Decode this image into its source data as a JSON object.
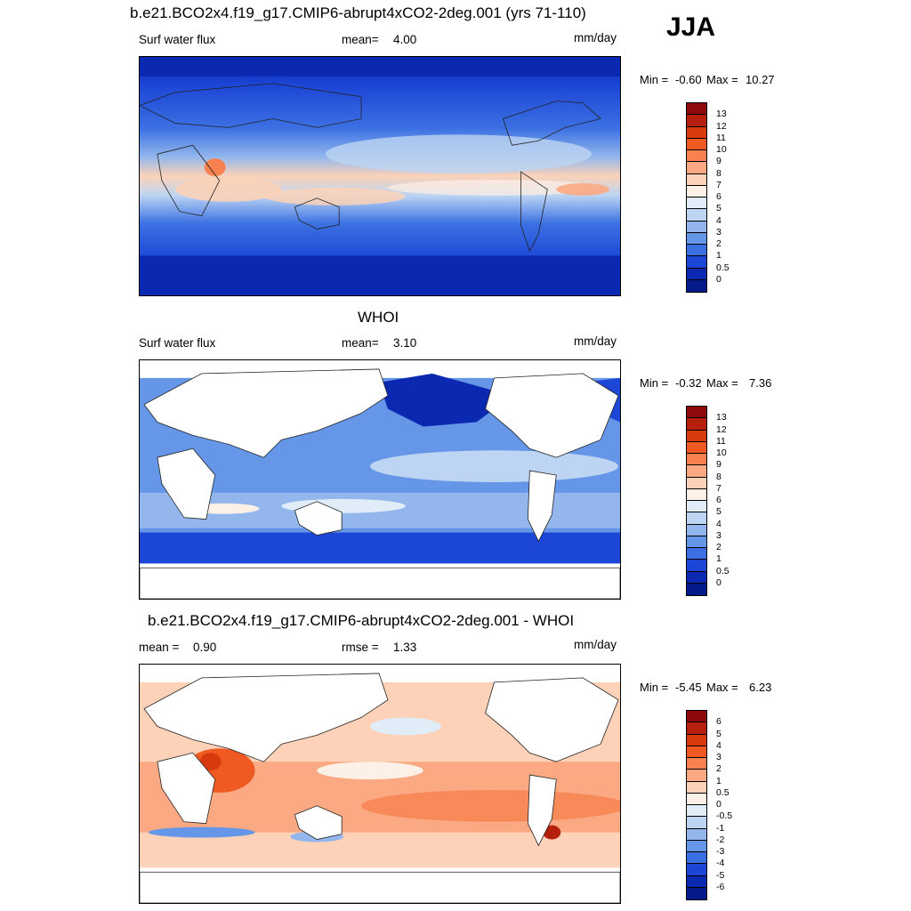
{
  "season": "JJA",
  "units": "mm/day",
  "panels": [
    {
      "id": "model",
      "title": "b.e21.BCO2x4.f19_g17.CMIP6-abrupt4xCO2-2deg.001 (yrs 71-110)",
      "left_label": "Surf water flux",
      "stat_label": "mean=",
      "stat_value": "4.00",
      "min_label": "Min =",
      "min_value": "-0.60",
      "max_label": "Max =",
      "max_value": "10.27",
      "colorbar": {
        "labels": [
          "13",
          "12",
          "11",
          "10",
          "9",
          "8",
          "7",
          "6",
          "5",
          "4",
          "3",
          "2",
          "1",
          "0.5",
          "0"
        ],
        "colors": [
          "#8c0a0a",
          "#b51f0b",
          "#d83a0d",
          "#ef5a22",
          "#f7824f",
          "#fba983",
          "#fdd2b8",
          "#fdf0e6",
          "#e0ecf8",
          "#bdd5f3",
          "#93b7ed",
          "#6596e8",
          "#3c70e2",
          "#1c46d6",
          "#0b28b0",
          "#051a8a"
        ]
      }
    },
    {
      "id": "obs",
      "title": "WHOI",
      "left_label": "Surf water flux",
      "stat_label": "mean=",
      "stat_value": "3.10",
      "min_label": "Min =",
      "min_value": "-0.32",
      "max_label": "Max =",
      "max_value": "7.36",
      "colorbar": {
        "labels": [
          "13",
          "12",
          "11",
          "10",
          "9",
          "8",
          "7",
          "6",
          "5",
          "4",
          "3",
          "2",
          "1",
          "0.5",
          "0"
        ],
        "colors": [
          "#8c0a0a",
          "#b51f0b",
          "#d83a0d",
          "#ef5a22",
          "#f7824f",
          "#fba983",
          "#fdd2b8",
          "#fdf0e6",
          "#e0ecf8",
          "#bdd5f3",
          "#93b7ed",
          "#6596e8",
          "#3c70e2",
          "#1c46d6",
          "#0b28b0",
          "#051a8a"
        ]
      }
    },
    {
      "id": "diff",
      "title": "b.e21.BCO2x4.f19_g17.CMIP6-abrupt4xCO2-2deg.001 - WHOI",
      "left_label": "mean =",
      "left_value": "0.90",
      "stat_label": "rmse =",
      "stat_value": "1.33",
      "min_label": "Min =",
      "min_value": "-5.45",
      "max_label": "Max =",
      "max_value": "6.23",
      "colorbar": {
        "labels": [
          "6",
          "5",
          "4",
          "3",
          "2",
          "1",
          "0.5",
          "0",
          "-0.5",
          "-1",
          "-2",
          "-3",
          "-4",
          "-5",
          "-6"
        ],
        "colors": [
          "#8c0a0a",
          "#b51f0b",
          "#d83a0d",
          "#ef5a22",
          "#f7824f",
          "#fba983",
          "#fdd2b8",
          "#fdf0e6",
          "#e0ecf8",
          "#bdd5f3",
          "#93b7ed",
          "#6596e8",
          "#3c70e2",
          "#1c46d6",
          "#0b28b0",
          "#051a8a"
        ]
      }
    }
  ]
}
